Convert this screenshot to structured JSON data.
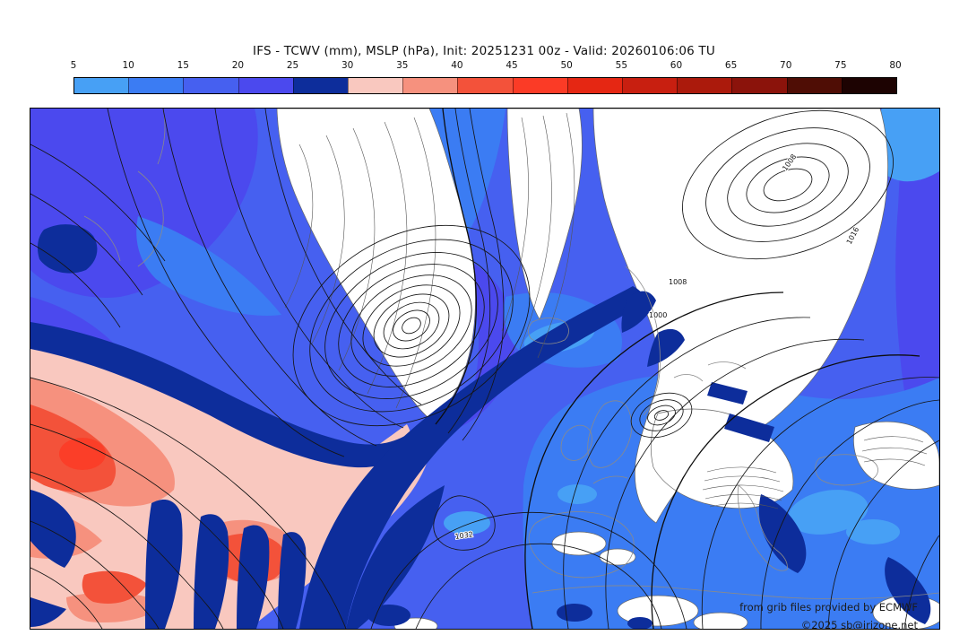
{
  "title": "IFS - TCWV (mm), MSLP (hPa), Init: 20251231 00z - Valid: 20260106:06 TU",
  "colorbar": {
    "units": "mm",
    "ticks": [
      "5",
      "10",
      "15",
      "20",
      "25",
      "30",
      "35",
      "40",
      "45",
      "50",
      "55",
      "60",
      "65",
      "70",
      "75",
      "80"
    ],
    "colors": [
      "#47a0f5",
      "#3b7cf3",
      "#4660f0",
      "#4b49ee",
      "#0d2d9b",
      "#f9c8bf",
      "#f6917e",
      "#f3523a",
      "#fb3b26",
      "#e52713",
      "#c81f10",
      "#ab1a0c",
      "#8b130b",
      "#4f0d05",
      "#1d0302"
    ]
  },
  "map": {
    "field_fill": "TCWV (mm)",
    "field_contours": "MSLP (hPa)",
    "contour_labels": [
      {
        "text": "1008"
      },
      {
        "text": "1000"
      },
      {
        "text": "1016"
      },
      {
        "text": "1032"
      },
      {
        "text": "1008"
      }
    ],
    "attribution_line1": "from grib files provided by ECMWF",
    "attribution_line2": "©2025 sb@irizone.net"
  }
}
